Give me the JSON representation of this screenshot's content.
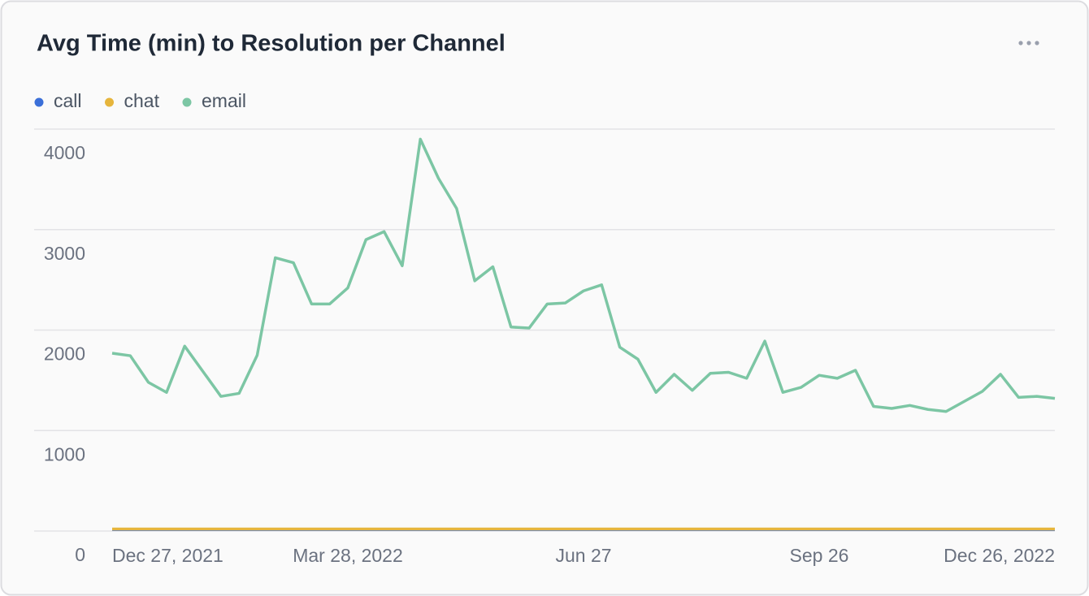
{
  "chart_data": {
    "type": "line",
    "title": "Avg Time (min) to Resolution per Channel",
    "categories": [
      "Dec 27, 2021",
      null,
      null,
      null,
      null,
      null,
      null,
      null,
      null,
      null,
      null,
      null,
      null,
      "Mar 28, 2022",
      null,
      null,
      null,
      null,
      null,
      null,
      null,
      null,
      null,
      null,
      null,
      null,
      "Jun 27",
      null,
      null,
      null,
      null,
      null,
      null,
      null,
      null,
      null,
      null,
      null,
      null,
      "Sep 26",
      null,
      null,
      null,
      null,
      null,
      null,
      null,
      null,
      null,
      null,
      null,
      null,
      "Dec 26, 2022"
    ],
    "ylim": [
      0,
      4000
    ],
    "yticks": [
      0,
      1000,
      2000,
      3000,
      4000
    ],
    "grid": true,
    "legend": "top-left",
    "series": [
      {
        "name": "call",
        "color": "#3b6fd8",
        "values": [
          15,
          15,
          15,
          15,
          15,
          15,
          15,
          15,
          15,
          15,
          15,
          15,
          15,
          15,
          15,
          15,
          15,
          15,
          15,
          15,
          15,
          15,
          15,
          15,
          15,
          15,
          15,
          15,
          15,
          15,
          15,
          15,
          15,
          15,
          15,
          15,
          15,
          15,
          15,
          15,
          15,
          15,
          15,
          15,
          15,
          15,
          15,
          15,
          15,
          15,
          15,
          15,
          15
        ]
      },
      {
        "name": "chat",
        "color": "#e6b53c",
        "values": [
          20,
          20,
          20,
          20,
          20,
          20,
          20,
          20,
          20,
          20,
          20,
          20,
          20,
          20,
          20,
          20,
          20,
          20,
          20,
          20,
          20,
          20,
          20,
          20,
          20,
          20,
          20,
          20,
          20,
          20,
          20,
          20,
          20,
          20,
          20,
          20,
          20,
          20,
          20,
          20,
          20,
          20,
          20,
          20,
          20,
          20,
          20,
          20,
          20,
          20,
          20,
          20,
          20
        ]
      },
      {
        "name": "email",
        "color": "#7cc6a4",
        "values": [
          1770,
          1745,
          1480,
          1380,
          1840,
          1590,
          1340,
          1370,
          1750,
          2720,
          2670,
          2260,
          2260,
          2420,
          2900,
          2980,
          2640,
          3900,
          3510,
          3210,
          2490,
          2630,
          2030,
          2020,
          2260,
          2270,
          2390,
          2450,
          1830,
          1710,
          1380,
          1560,
          1400,
          1570,
          1580,
          1520,
          1890,
          1380,
          1430,
          1550,
          1520,
          1600,
          1240,
          1220,
          1250,
          1210,
          1190,
          1290,
          1390,
          1560,
          1330,
          1340,
          1320
        ]
      }
    ]
  }
}
